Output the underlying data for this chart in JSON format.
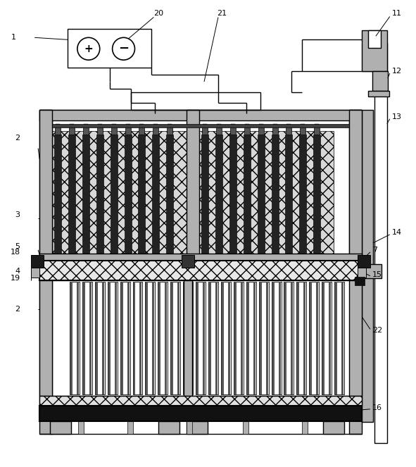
{
  "bg_color": "#ffffff",
  "light_gray": "#b0b0b0",
  "dark_gray": "#404040",
  "med_gray": "#808080",
  "figsize": [
    5.91,
    6.63
  ],
  "dpi": 100
}
